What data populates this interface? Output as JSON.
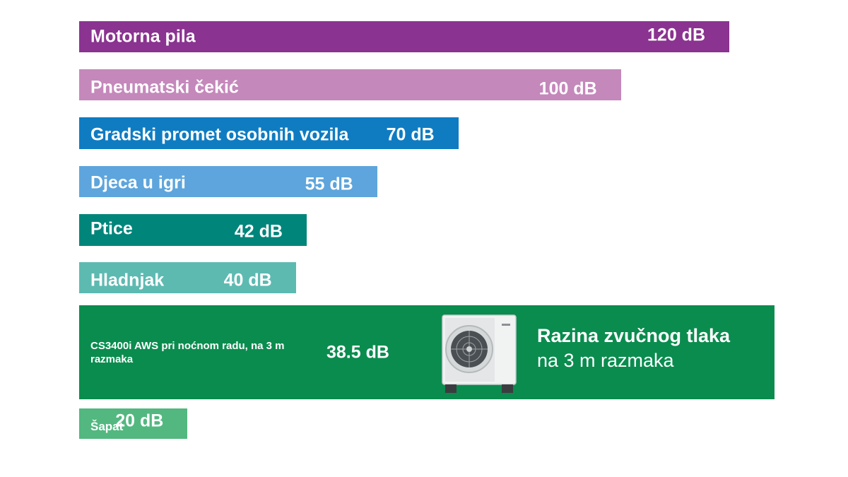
{
  "chart_data": {
    "type": "bar",
    "orientation": "horizontal",
    "unit": "dB",
    "categories": [
      "Motorna pila",
      "Pneumatski čekić",
      "Gradski promet osobnih vozila",
      "Djeca u igri",
      "Ptice",
      "Hladnjak",
      "CS3400i AWS pri noćnom radu, na 3 m razmaka",
      "Šapat"
    ],
    "values": [
      120,
      100,
      70,
      55,
      42,
      40,
      38.5,
      20
    ],
    "value_labels": [
      "120 dB",
      "100 dB",
      "70 dB",
      "55 dB",
      "42 dB",
      "40 dB",
      "38.5 dB",
      "20 dB"
    ],
    "colors": [
      "#8a3390",
      "#c488bb",
      "#0f7cc2",
      "#5da5dc",
      "#00857a",
      "#5dbab1",
      "#0a8c4e",
      "#52b880"
    ],
    "title": "",
    "xlabel": "",
    "ylabel": "",
    "grid": false,
    "highlight": {
      "category_index": 6,
      "note_line1": "Razina zvučnog tlaka",
      "note_line2": "na 3 m razmaka",
      "image": "outdoor-heat-pump-unit"
    }
  }
}
